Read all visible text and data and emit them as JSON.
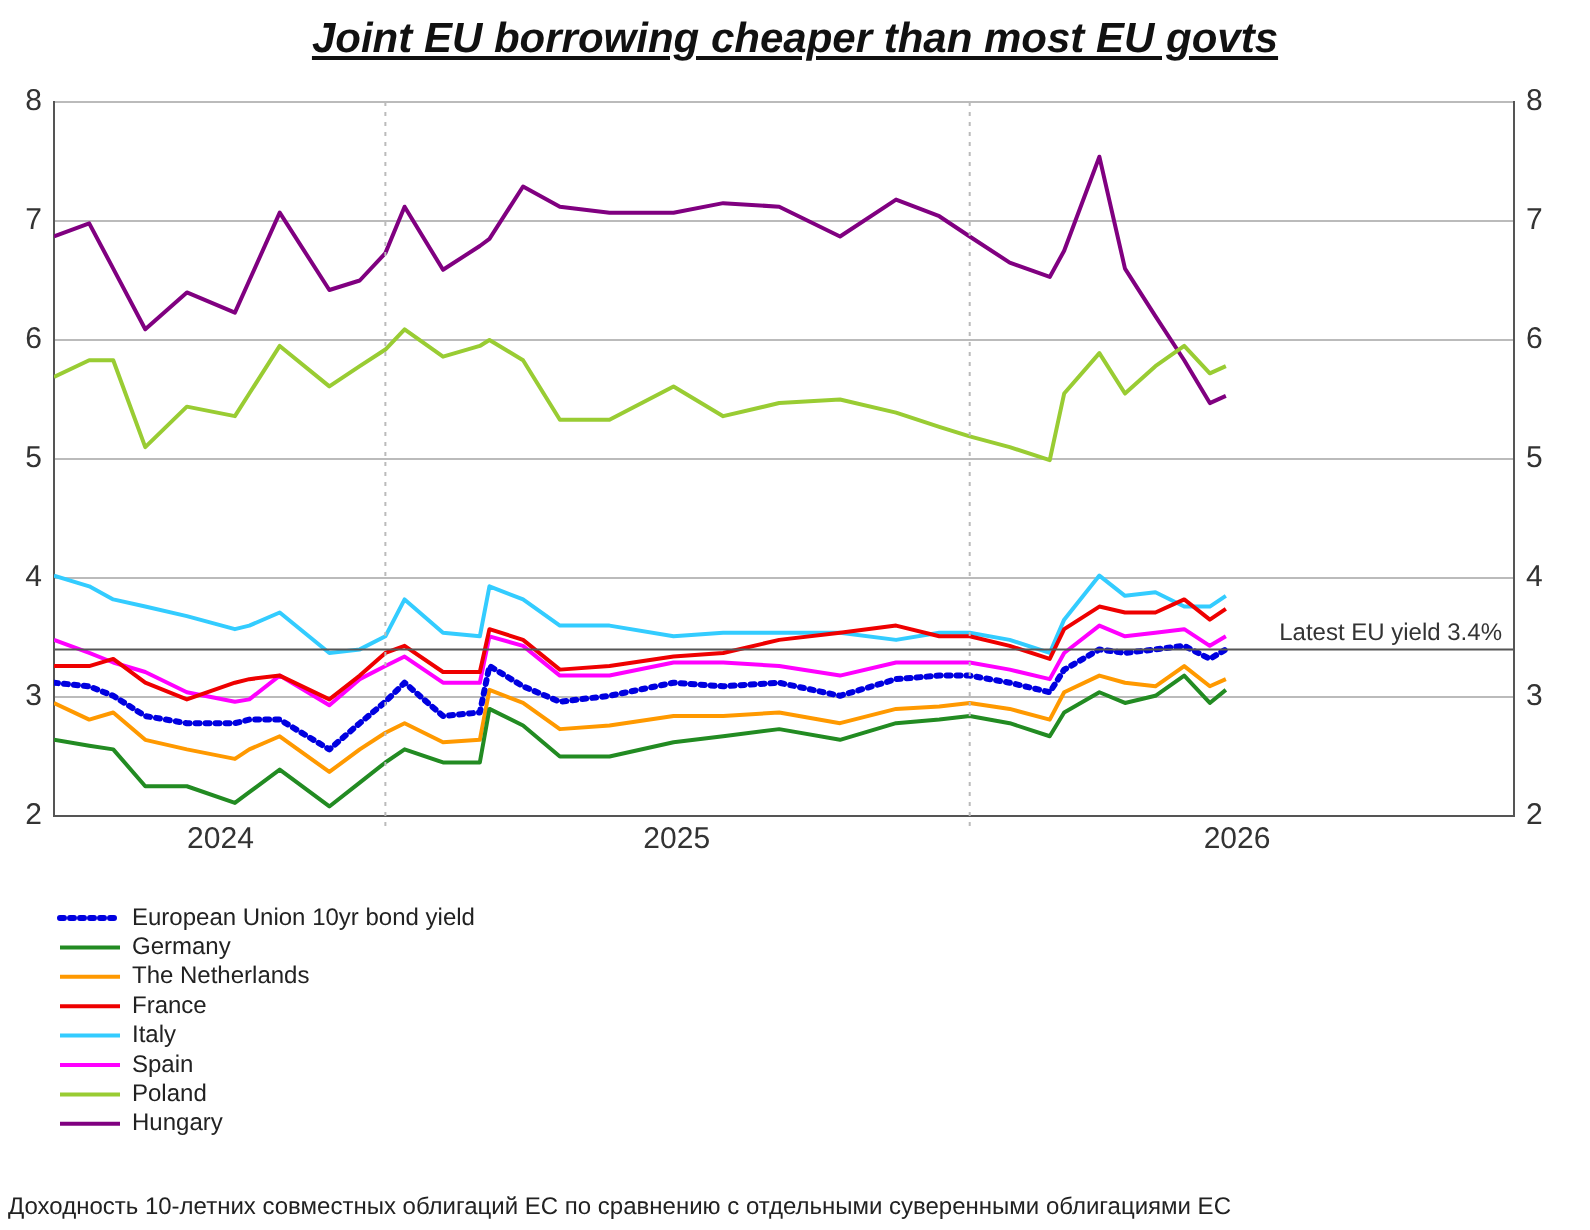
{
  "chart_data": {
    "type": "line",
    "title": "Joint EU borrowing cheaper than most EU govts",
    "x": [
      "2024-06-08",
      "2024-06-30",
      "2024-07-15",
      "2024-08-04",
      "2024-08-30",
      "2024-09-29",
      "2024-10-08",
      "2024-10-27",
      "2024-11-27",
      "2024-12-16",
      "2025-01-01",
      "2025-01-13",
      "2025-02-06",
      "2025-03-01",
      "2025-03-07",
      "2025-03-28",
      "2025-04-20",
      "2025-05-21",
      "2025-06-30",
      "2025-07-31",
      "2025-09-04",
      "2025-10-12",
      "2025-11-16",
      "2025-12-13",
      "2026-01-01",
      "2026-01-26",
      "2026-02-20",
      "2026-03-01",
      "2026-03-23",
      "2026-04-08",
      "2026-04-27",
      "2026-05-15",
      "2026-05-31",
      "2026-06-10"
    ],
    "series": [
      {
        "name": "European Union 10yr bond yield",
        "color": "#0000e0",
        "line_style": "dotted",
        "values": [
          3.12,
          3.09,
          3.01,
          2.84,
          2.78,
          2.78,
          2.81,
          2.81,
          2.56,
          2.78,
          2.96,
          3.12,
          2.84,
          2.87,
          3.26,
          3.09,
          2.96,
          3.01,
          3.12,
          3.09,
          3.12,
          3.01,
          3.15,
          3.18,
          3.18,
          3.12,
          3.04,
          3.23,
          3.4,
          3.37,
          3.4,
          3.43,
          3.32,
          3.4
        ]
      },
      {
        "name": "Germany",
        "color": "#228b22",
        "values": [
          2.64,
          2.59,
          2.56,
          2.25,
          2.25,
          2.11,
          2.2,
          2.39,
          2.08,
          2.28,
          2.45,
          2.56,
          2.45,
          2.45,
          2.9,
          2.76,
          2.5,
          2.5,
          2.62,
          2.67,
          2.73,
          2.64,
          2.78,
          2.81,
          2.84,
          2.78,
          2.67,
          2.87,
          3.04,
          2.95,
          3.01,
          3.18,
          2.95,
          3.06
        ]
      },
      {
        "name": "The Netherlands",
        "color": "#ff9900",
        "values": [
          2.95,
          2.81,
          2.87,
          2.64,
          2.56,
          2.48,
          2.56,
          2.67,
          2.37,
          2.56,
          2.7,
          2.78,
          2.62,
          2.64,
          3.06,
          2.95,
          2.73,
          2.76,
          2.84,
          2.84,
          2.87,
          2.78,
          2.9,
          2.92,
          2.95,
          2.9,
          2.81,
          3.04,
          3.18,
          3.12,
          3.09,
          3.26,
          3.09,
          3.15
        ]
      },
      {
        "name": "France",
        "color": "#ee0000",
        "values": [
          3.26,
          3.26,
          3.32,
          3.12,
          2.98,
          3.12,
          3.15,
          3.18,
          2.98,
          3.18,
          3.37,
          3.43,
          3.21,
          3.21,
          3.57,
          3.48,
          3.23,
          3.26,
          3.34,
          3.37,
          3.48,
          3.54,
          3.6,
          3.51,
          3.51,
          3.43,
          3.32,
          3.57,
          3.76,
          3.71,
          3.71,
          3.82,
          3.65,
          3.74
        ]
      },
      {
        "name": "Italy",
        "color": "#33ccff",
        "values": [
          4.02,
          3.93,
          3.82,
          3.76,
          3.68,
          3.57,
          3.6,
          3.71,
          3.37,
          3.4,
          3.51,
          3.82,
          3.54,
          3.51,
          3.93,
          3.82,
          3.6,
          3.6,
          3.51,
          3.54,
          3.54,
          3.54,
          3.48,
          3.54,
          3.54,
          3.48,
          3.37,
          3.65,
          4.02,
          3.85,
          3.88,
          3.76,
          3.76,
          3.85
        ]
      },
      {
        "name": "Spain",
        "color": "#ff00ff",
        "values": [
          3.48,
          3.37,
          3.29,
          3.21,
          3.04,
          2.96,
          2.98,
          3.18,
          2.93,
          3.15,
          3.26,
          3.34,
          3.12,
          3.12,
          3.51,
          3.43,
          3.18,
          3.18,
          3.29,
          3.29,
          3.26,
          3.18,
          3.29,
          3.29,
          3.29,
          3.23,
          3.15,
          3.37,
          3.6,
          3.51,
          3.54,
          3.57,
          3.43,
          3.51
        ]
      },
      {
        "name": "Poland",
        "color": "#99cc33",
        "values": [
          5.69,
          5.83,
          5.83,
          5.1,
          5.44,
          5.36,
          5.55,
          5.95,
          5.61,
          5.78,
          5.92,
          6.09,
          5.86,
          5.95,
          6.0,
          5.83,
          5.33,
          5.33,
          5.61,
          5.36,
          5.47,
          5.5,
          5.39,
          5.27,
          5.19,
          5.1,
          4.99,
          5.55,
          5.89,
          5.55,
          5.78,
          5.95,
          5.72,
          5.78
        ]
      },
      {
        "name": "Hungary",
        "color": "#800080",
        "values": [
          6.87,
          6.98,
          6.6,
          6.09,
          6.4,
          6.23,
          6.5,
          7.07,
          6.42,
          6.5,
          6.73,
          7.12,
          6.59,
          6.79,
          6.85,
          7.29,
          7.12,
          7.07,
          7.07,
          7.15,
          7.12,
          6.87,
          7.18,
          7.04,
          6.87,
          6.65,
          6.53,
          6.75,
          7.54,
          6.6,
          6.2,
          5.83,
          5.47,
          5.53
        ]
      }
    ],
    "xlim": [
      "2024-06-08",
      "2026-12-07"
    ],
    "xticks": [
      {
        "value": "2024-09-20",
        "label": "2024"
      },
      {
        "value": "2025-07-02",
        "label": "2025"
      },
      {
        "value": "2026-06-17",
        "label": "2026"
      }
    ],
    "ylim": [
      2,
      8
    ],
    "yticks": [
      2,
      3,
      4,
      5,
      6,
      7,
      8
    ],
    "y2lim": [
      2,
      8
    ],
    "y2ticks": [
      2,
      3,
      4,
      5,
      6,
      7,
      8
    ],
    "ref_lines": [
      {
        "axis": "y",
        "value": 3.4,
        "label": "Latest EU yield 3.4%",
        "color": "#555555"
      },
      {
        "axis": "x",
        "value": "2025-01-01",
        "color": "#bbbbbb",
        "line_style": "dotted"
      },
      {
        "axis": "x",
        "value": "2026-01-01",
        "color": "#bbbbbb",
        "line_style": "dotted"
      }
    ],
    "grid": "y",
    "legend": "bottom left",
    "marker": "none",
    "annotations": [
      "Доходность 10-летних совместных облигаций ЕС по сравнению с отдельными суверенными облигациями ЕС"
    ]
  }
}
